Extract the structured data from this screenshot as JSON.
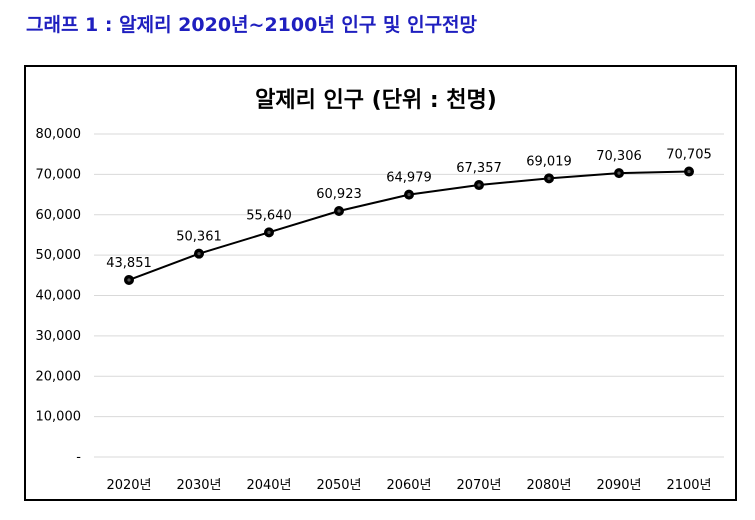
{
  "caption": "그래프 1 : 알제리 2020년~2100년 인구 및 인구전망",
  "chart_data": {
    "type": "line",
    "title": "알제리 인구 (단위 : 천명)",
    "xlabel": "",
    "ylabel": "",
    "categories": [
      "2020년",
      "2030년",
      "2040년",
      "2050년",
      "2060년",
      "2070년",
      "2080년",
      "2090년",
      "2100년"
    ],
    "series": [
      {
        "values": [
          43851,
          50361,
          55640,
          60923,
          64979,
          67357,
          69019,
          70306,
          70705
        ],
        "value_labels": [
          "43,851",
          "50,361",
          "55,640",
          "60,923",
          "64,979",
          "67,357",
          "69,019",
          "70,306",
          "70,705"
        ]
      }
    ],
    "ylim": [
      0,
      80000
    ],
    "yticks": [
      0,
      10000,
      20000,
      30000,
      40000,
      50000,
      60000,
      70000,
      80000
    ],
    "ytick_labels": [
      "-",
      "10,000",
      "20,000",
      "30,000",
      "40,000",
      "50,000",
      "60,000",
      "70,000",
      "80,000"
    ],
    "grid": true,
    "legend": "none",
    "colors": {
      "line": "#000000",
      "marker": "#000000",
      "grid": "#d9d9d9",
      "caption": "#1f1fbf"
    }
  }
}
